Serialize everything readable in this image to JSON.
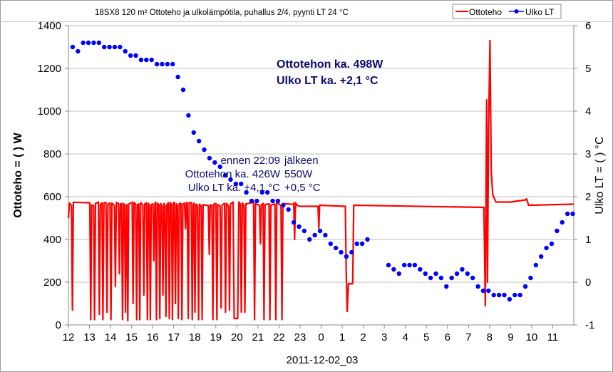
{
  "chart_data": {
    "type": "line",
    "title": "18SX8 120 m² Ottoteho ja ulkolämpötila, puhallus 2/4, pyynti LT 24 °C",
    "xlabel": "2011-12-02_03",
    "ylabel": "Ottoteho = ( ) W",
    "ylabel_right": "Ulko LT = ( ) °C",
    "x_unit": "hours since 12:00",
    "xlim": [
      0,
      24
    ],
    "ylim": [
      0,
      1400
    ],
    "ylim_right": [
      -1,
      6
    ],
    "x_tick_labels": [
      "12",
      "13",
      "14",
      "15",
      "16",
      "17",
      "18",
      "19",
      "20",
      "21",
      "22",
      "23",
      "0",
      "1",
      "2",
      "3",
      "4",
      "5",
      "6",
      "7",
      "8",
      "9",
      "10",
      "11"
    ],
    "y_ticks": [
      "0",
      "200",
      "400",
      "600",
      "800",
      "1000",
      "1200",
      "1400"
    ],
    "y_ticks_right": [
      "-1",
      "0",
      "1",
      "2",
      "3",
      "4",
      "5",
      "6"
    ],
    "grid": true,
    "legend": {
      "position": "top-right",
      "entries": [
        "Ottoteho",
        "Ulko LT"
      ]
    },
    "colors": {
      "power": "#ff0000",
      "temp": "#0000ff",
      "text": "#0a0a6e",
      "grid": "#c0c0c0"
    },
    "annotations": {
      "avg_power": "Ottotehon ka. 498W",
      "avg_temp": "Ulko LT ka. +2,1 °C",
      "before_head": "ennen 22:09",
      "before_power": "Ottotehon ka. 426W",
      "before_temp": "Ulko LT ka. +4,1 °C",
      "after_head": "jälkeen",
      "after_power": "550W",
      "after_temp": "+0,5 °C"
    },
    "series": [
      {
        "name": "Ottoteho",
        "axis": "left",
        "baseline_high": 575,
        "drops": [
          [
            0.19,
            70
          ],
          [
            1.06,
            25
          ],
          [
            1.24,
            25
          ],
          [
            1.47,
            50
          ],
          [
            1.64,
            25
          ],
          [
            1.83,
            60
          ],
          [
            2.02,
            25
          ],
          [
            2.23,
            180
          ],
          [
            2.42,
            240
          ],
          [
            2.57,
            25
          ],
          [
            2.71,
            60
          ],
          [
            2.82,
            20
          ],
          [
            3.07,
            100
          ],
          [
            3.24,
            25
          ],
          [
            3.39,
            25
          ],
          [
            3.58,
            140
          ],
          [
            3.75,
            25
          ],
          [
            3.89,
            25
          ],
          [
            4.06,
            300
          ],
          [
            4.18,
            25
          ],
          [
            4.34,
            30
          ],
          [
            4.49,
            140
          ],
          [
            4.63,
            40
          ],
          [
            4.79,
            30
          ],
          [
            4.94,
            25
          ],
          [
            5.08,
            100
          ],
          [
            5.22,
            30
          ],
          [
            5.39,
            25
          ],
          [
            5.56,
            450
          ],
          [
            5.69,
            30
          ],
          [
            5.88,
            25
          ],
          [
            6.01,
            60
          ],
          [
            6.18,
            25
          ],
          [
            6.35,
            25
          ],
          [
            6.69,
            330
          ],
          [
            6.86,
            25
          ],
          [
            7.05,
            25
          ],
          [
            7.25,
            80
          ],
          [
            7.46,
            60
          ],
          [
            7.65,
            70
          ],
          [
            8.21,
            60
          ],
          [
            8.38,
            60
          ],
          [
            8.84,
            25
          ],
          [
            9.12,
            380
          ],
          [
            9.29,
            25
          ],
          [
            9.57,
            25
          ],
          [
            9.85,
            25
          ],
          [
            10.14,
            25
          ],
          [
            10.74,
            400
          ]
        ],
        "points": [
          [
            0,
            500
          ],
          [
            0.05,
            570
          ],
          [
            7.82,
            575
          ],
          [
            7.87,
            30
          ],
          [
            8.04,
            30
          ],
          [
            8.09,
            575
          ],
          [
            10.7,
            570
          ],
          [
            10.85,
            560
          ],
          [
            11.0,
            555
          ],
          [
            11.85,
            555
          ],
          [
            11.89,
            453
          ],
          [
            11.93,
            560
          ],
          [
            13.15,
            555
          ],
          [
            13.19,
            253
          ],
          [
            13.24,
            63
          ],
          [
            13.3,
            193
          ],
          [
            13.5,
            193
          ],
          [
            13.55,
            560
          ],
          [
            19.73,
            550
          ],
          [
            19.8,
            90
          ],
          [
            19.86,
            1053
          ],
          [
            19.9,
            200
          ],
          [
            19.95,
            900
          ],
          [
            20.02,
            1330
          ],
          [
            20.08,
            720
          ],
          [
            20.15,
            610
          ],
          [
            20.3,
            575
          ],
          [
            21.0,
            575
          ],
          [
            21.7,
            585
          ],
          [
            21.76,
            590
          ],
          [
            21.85,
            560
          ],
          [
            24,
            565
          ]
        ]
      },
      {
        "name": "Ulko LT",
        "axis": "right",
        "x_start": 0.2,
        "x_step": 0.25,
        "values": [
          5.5,
          5.4,
          5.6,
          5.6,
          5.6,
          5.6,
          5.5,
          5.5,
          5.5,
          5.5,
          5.4,
          5.3,
          5.3,
          5.2,
          5.2,
          5.2,
          5.1,
          5.1,
          5.1,
          5.1,
          4.8,
          4.5,
          3.9,
          3.5,
          3.3,
          3.1,
          2.9,
          2.8,
          2.7,
          2.5,
          2.4,
          2.3,
          2.3,
          2.1,
          1.9,
          1.9,
          2.1,
          2.1,
          1.9,
          1.9,
          1.8,
          1.7,
          1.4,
          1.3,
          1.2,
          1.0,
          1.1,
          1.2,
          1.1,
          0.9,
          0.8,
          0.7,
          0.6,
          0.7,
          0.9,
          0.9,
          1.0,
          null,
          null,
          null,
          0.4,
          0.3,
          0.2,
          0.4,
          0.4,
          0.4,
          0.3,
          0.2,
          0.1,
          0.2,
          0.1,
          -0.1,
          0.1,
          0.2,
          0.3,
          0.2,
          0.1,
          -0.1,
          -0.2,
          -0.2,
          -0.3,
          -0.3,
          -0.3,
          -0.4,
          -0.3,
          -0.3,
          -0.1,
          0.1,
          0.4,
          0.6,
          0.8,
          0.9,
          1.2,
          1.4,
          1.6,
          1.6
        ]
      }
    ]
  }
}
